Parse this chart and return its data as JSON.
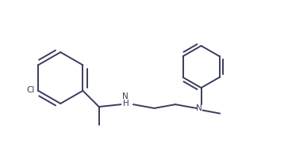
{
  "bg_color": "#ffffff",
  "line_color": "#3a3d5c",
  "line_width": 1.4,
  "fig_width": 3.63,
  "fig_height": 1.86,
  "dpi": 100,
  "xlim": [
    0.0,
    9.5
  ],
  "ylim": [
    0.5,
    5.5
  ]
}
